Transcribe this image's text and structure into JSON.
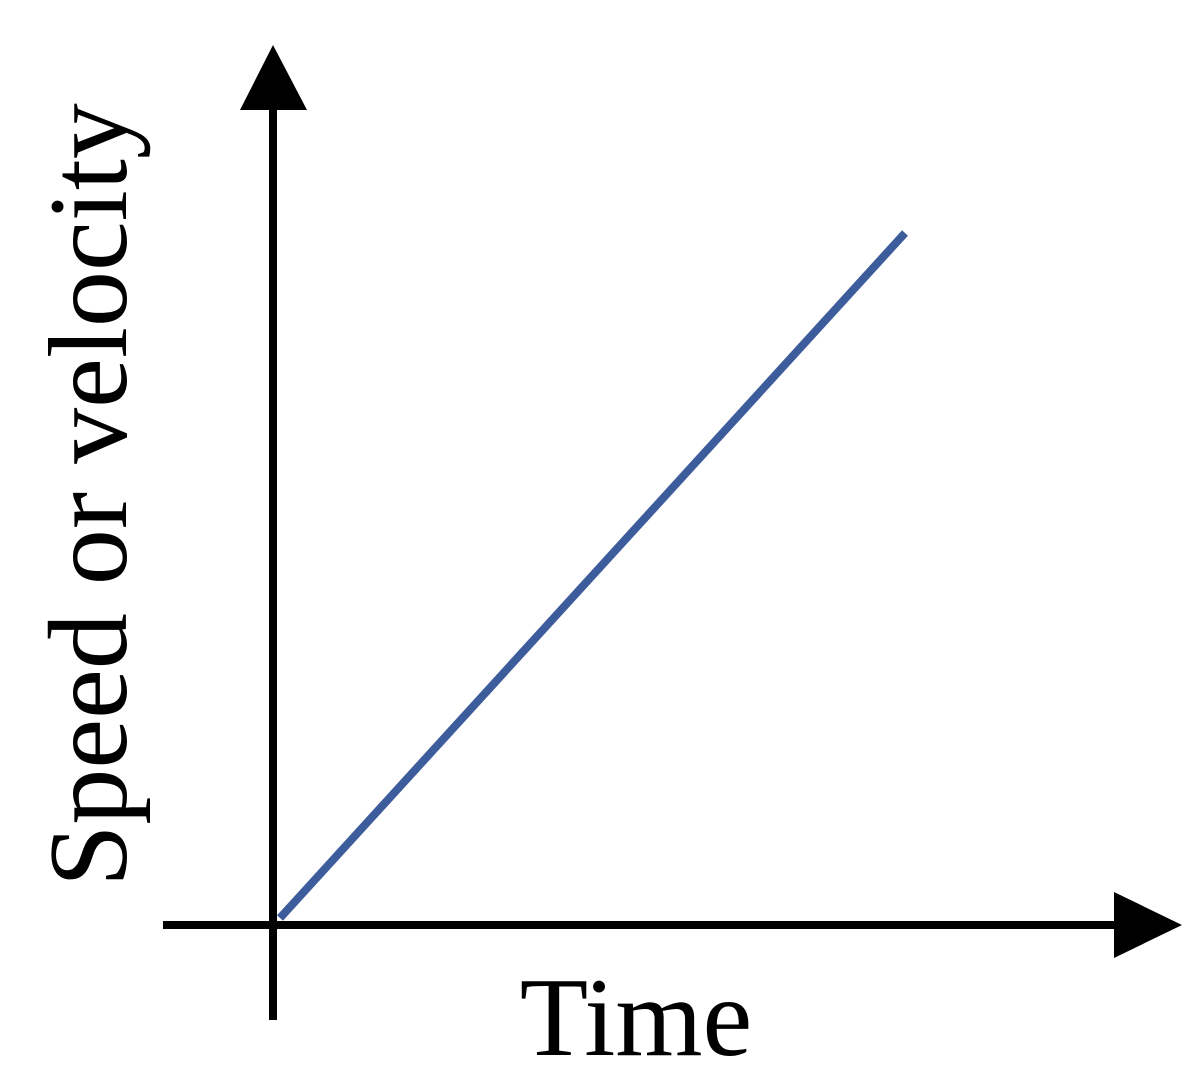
{
  "axes": {
    "y_label": "Speed or velocity",
    "x_label": "Time"
  }
}
